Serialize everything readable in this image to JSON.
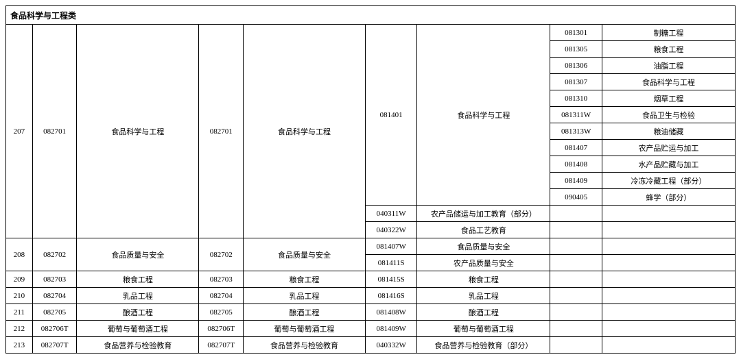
{
  "header": "食品科学与工程类",
  "rows": [
    {
      "c0": "207",
      "c1": "082701",
      "c2": "食品科学与工程",
      "c3": "082701",
      "c4": "食品科学与工程",
      "c5": "081401",
      "c6": "食品科学与工程",
      "c7": "081301",
      "c8": "制糖工程",
      "span0": 13,
      "span1": 13,
      "span2": 13,
      "span3": 13,
      "span4": 13,
      "span5": 11,
      "span6": 11
    },
    {
      "c7": "081305",
      "c8": "粮食工程"
    },
    {
      "c7": "081306",
      "c8": "油脂工程"
    },
    {
      "c7": "081307",
      "c8": "食品科学与工程"
    },
    {
      "c7": "081310",
      "c8": "烟草工程"
    },
    {
      "c7": "081311W",
      "c8": "食品卫生与检验"
    },
    {
      "c7": "081313W",
      "c8": "粮油储藏"
    },
    {
      "c7": "081407",
      "c8": "农产品贮运与加工"
    },
    {
      "c7": "081408",
      "c8": "水产品贮藏与加工"
    },
    {
      "c7": "081409",
      "c8": "冷冻冷藏工程（部分）"
    },
    {
      "c7": "090405",
      "c8": "蜂学（部分）"
    },
    {
      "c5": "040311W",
      "c6": "农产品储运与加工教育（部分）",
      "c7": "",
      "c8": ""
    },
    {
      "c5": "040322W",
      "c6": "食品工艺教育",
      "c7": "",
      "c8": ""
    },
    {
      "c0": "208",
      "c1": "082702",
      "c2": "食品质量与安全",
      "c3": "082702",
      "c4": "食品质量与安全",
      "c5": "081407W",
      "c6": "食品质量与安全",
      "c7": "",
      "c8": "",
      "span0": 2,
      "span1": 2,
      "span2": 2,
      "span3": 2,
      "span4": 2
    },
    {
      "c5": "081411S",
      "c6": "农产品质量与安全",
      "c7": "",
      "c8": ""
    },
    {
      "c0": "209",
      "c1": "082703",
      "c2": "粮食工程",
      "c3": "082703",
      "c4": "粮食工程",
      "c5": "081415S",
      "c6": "粮食工程",
      "c7": "",
      "c8": ""
    },
    {
      "c0": "210",
      "c1": "082704",
      "c2": "乳品工程",
      "c3": "082704",
      "c4": "乳品工程",
      "c5": "081416S",
      "c6": "乳品工程",
      "c7": "",
      "c8": ""
    },
    {
      "c0": "211",
      "c1": "082705",
      "c2": "酿酒工程",
      "c3": "082705",
      "c4": "酿酒工程",
      "c5": "081408W",
      "c6": "酿酒工程",
      "c7": "",
      "c8": ""
    },
    {
      "c0": "212",
      "c1": "082706T",
      "c2": "葡萄与葡萄酒工程",
      "c3": "082706T",
      "c4": "葡萄与葡萄酒工程",
      "c5": "081409W",
      "c6": "葡萄与葡萄酒工程",
      "c7": "",
      "c8": ""
    },
    {
      "c0": "213",
      "c1": "082707T",
      "c2": "食品营养与检验教育",
      "c3": "082707T",
      "c4": "食品营养与检验教育",
      "c5": "040332W",
      "c6": "食品营养与检验教育（部分）",
      "c7": "",
      "c8": ""
    }
  ]
}
